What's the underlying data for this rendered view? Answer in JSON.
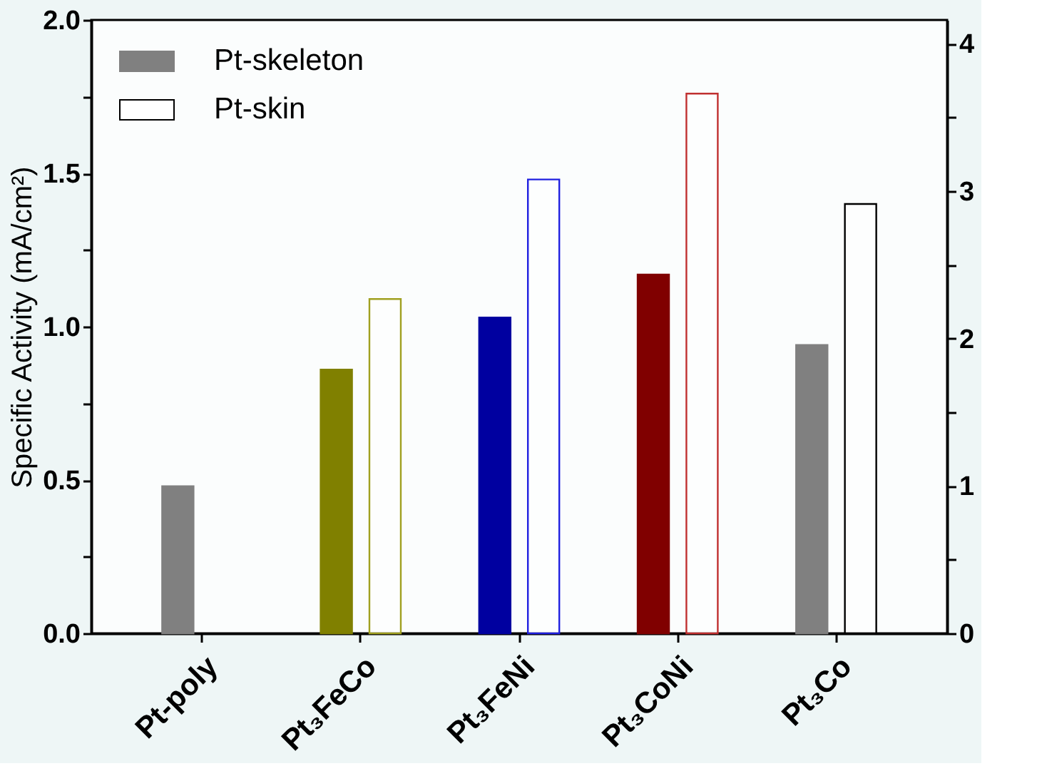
{
  "chart_data": {
    "type": "bar",
    "ylabel": "Specific Activity (mA/cm²)",
    "categories": [
      "Pt-poly",
      "Pt₃FeCo",
      "Pt₃FeNi",
      "Pt₃CoNi",
      "Pt₃Co"
    ],
    "series": [
      {
        "name": "Pt-skeleton",
        "color": "#808080",
        "colors": [
          "#808080",
          "#808000",
          "#0000a0",
          "#800000",
          "#808080"
        ],
        "values": [
          0.48,
          0.86,
          1.03,
          1.17,
          0.94
        ]
      },
      {
        "name": "Pt-skin",
        "color": "#000000",
        "colors": [
          "#000000",
          "#a0a020",
          "#2020e0",
          "#c03030",
          "#000000"
        ],
        "values": [
          null,
          1.09,
          1.48,
          1.76,
          1.4
        ]
      }
    ],
    "ylim": [
      0,
      2.0
    ],
    "yticks": [
      {
        "value": 0,
        "label": "0.0"
      },
      {
        "value": 0.25,
        "label": null
      },
      {
        "value": 0.5,
        "label": "0.5"
      },
      {
        "value": 0.75,
        "label": null
      },
      {
        "value": 1.0,
        "label": "1.0"
      },
      {
        "value": 1.25,
        "label": null
      },
      {
        "value": 1.5,
        "label": "1.5"
      },
      {
        "value": 1.75,
        "label": null
      },
      {
        "value": 2.0,
        "label": "2.0"
      }
    ],
    "y2lim": [
      0,
      4.16
    ],
    "y2ticks": [
      0,
      {
        "value": 0.5,
        "label": null
      },
      1,
      {
        "value": 1.5,
        "label": null
      },
      2,
      {
        "value": 2.5,
        "label": null
      },
      3,
      {
        "value": 3.5,
        "label": null
      },
      4
    ],
    "legend": "top left",
    "grid": false
  }
}
